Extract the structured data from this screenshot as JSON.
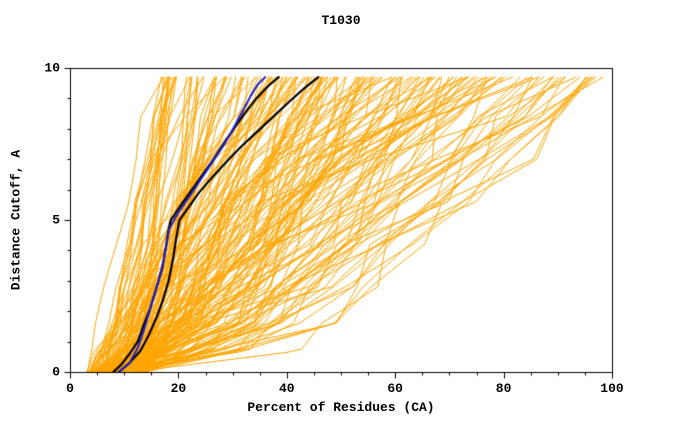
{
  "chart_data": {
    "type": "line",
    "title": "T1030",
    "xlabel": "Percent of Residues (CA)",
    "ylabel": "Distance Cutoff, A",
    "xlim": [
      0,
      100
    ],
    "ylim": [
      0,
      10
    ],
    "grid": false,
    "legend": "none",
    "x_ticks": [
      {
        "value": 0,
        "label": "0"
      },
      {
        "value": 20,
        "label": "20"
      },
      {
        "value": 40,
        "label": "40"
      },
      {
        "value": 60,
        "label": "60"
      },
      {
        "value": 80,
        "label": "80"
      },
      {
        "value": 100,
        "label": "100"
      }
    ],
    "y_ticks": [
      {
        "value": 0,
        "label": "0"
      },
      {
        "value": 5,
        "label": "5"
      },
      {
        "value": 10,
        "label": "10"
      }
    ],
    "x_minor_step": 5,
    "y_minor_step": 1,
    "curve_top_y": 9.7,
    "colors": {
      "background_models": "#FFA500",
      "highlighted_models": "#000000",
      "best_model": "#2222CC",
      "axis": "#000000",
      "background": "#FFFFFF"
    },
    "background_models": {
      "count": 190,
      "seed": 1030,
      "x_start_range": [
        3,
        14
      ],
      "x_top_range": [
        17,
        100
      ]
    },
    "highlighted_models": [
      {
        "name": "highlighted-model-1",
        "points": [
          [
            8,
            0
          ],
          [
            9.5,
            0.25
          ],
          [
            11,
            0.6
          ],
          [
            12.5,
            1.0
          ],
          [
            13.5,
            1.5
          ],
          [
            14.8,
            2.1
          ],
          [
            16,
            2.8
          ],
          [
            17,
            3.4
          ],
          [
            17.6,
            4.0
          ],
          [
            18.1,
            4.6
          ],
          [
            18.6,
            5.0
          ],
          [
            20.5,
            5.5
          ],
          [
            22.5,
            6.0
          ],
          [
            24.5,
            6.5
          ],
          [
            26.5,
            7.0
          ],
          [
            28.3,
            7.5
          ],
          [
            30.2,
            8.0
          ],
          [
            32.2,
            8.5
          ],
          [
            34.4,
            9.0
          ],
          [
            36.5,
            9.4
          ],
          [
            38.5,
            9.7
          ]
        ]
      },
      {
        "name": "highlighted-model-2",
        "points": [
          [
            9,
            0
          ],
          [
            11,
            0.3
          ],
          [
            13,
            0.7
          ],
          [
            14.5,
            1.2
          ],
          [
            16,
            1.8
          ],
          [
            17.2,
            2.4
          ],
          [
            18.2,
            3.0
          ],
          [
            19,
            3.7
          ],
          [
            19.6,
            4.4
          ],
          [
            20.2,
            5.0
          ],
          [
            21.8,
            5.4
          ],
          [
            23.8,
            5.9
          ],
          [
            26.2,
            6.4
          ],
          [
            28.8,
            6.9
          ],
          [
            31.5,
            7.4
          ],
          [
            34.5,
            7.9
          ],
          [
            37.5,
            8.4
          ],
          [
            40.5,
            8.9
          ],
          [
            43,
            9.3
          ],
          [
            45.8,
            9.7
          ]
        ]
      }
    ],
    "best_model": {
      "name": "best-model",
      "points": [
        [
          9,
          0
        ],
        [
          11,
          0.3
        ],
        [
          12.5,
          0.8
        ],
        [
          13.5,
          1.3
        ],
        [
          14.5,
          1.9
        ],
        [
          15.5,
          2.5
        ],
        [
          16.5,
          3.1
        ],
        [
          17.3,
          3.7
        ],
        [
          17.8,
          4.2
        ],
        [
          18.3,
          4.7
        ],
        [
          19.5,
          5.1
        ],
        [
          21,
          5.5
        ],
        [
          22.5,
          5.9
        ],
        [
          24,
          6.3
        ],
        [
          25.5,
          6.7
        ],
        [
          27,
          7.1
        ],
        [
          28.5,
          7.5
        ],
        [
          29.8,
          7.9
        ],
        [
          31,
          8.3
        ],
        [
          32.2,
          8.7
        ],
        [
          33.4,
          9.1
        ],
        [
          34.6,
          9.45
        ],
        [
          36,
          9.7
        ]
      ]
    }
  }
}
